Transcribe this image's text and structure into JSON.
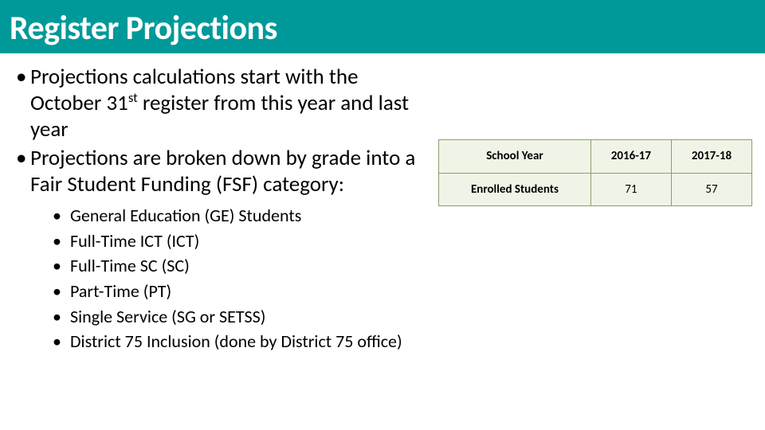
{
  "title": "Register Projections",
  "bullets": {
    "main": [
      {
        "pre": "Projections calculations start with the October 31",
        "ord": "st",
        "post": " register from this year and last year"
      },
      {
        "pre": "Projections are broken down by grade into a Fair Student Funding (FSF) category:",
        "ord": "",
        "post": ""
      }
    ],
    "sub": [
      "General Education (GE) Students",
      "Full-Time ICT (ICT)",
      "Full-Time SC (SC)",
      "Part-Time (PT)",
      "Single Service (SG or SETSS)",
      "District 75 Inclusion (done by District 75 office)"
    ]
  },
  "table": {
    "type": "table",
    "border_color": "#88a070",
    "header_bg": "#f0f4e6",
    "row_bg": "#f0f4e6",
    "font_size": 15,
    "columns": [
      "School Year",
      "2016-17",
      "2017-18"
    ],
    "rows": [
      [
        "Enrolled Students",
        "71",
        "57"
      ]
    ]
  }
}
